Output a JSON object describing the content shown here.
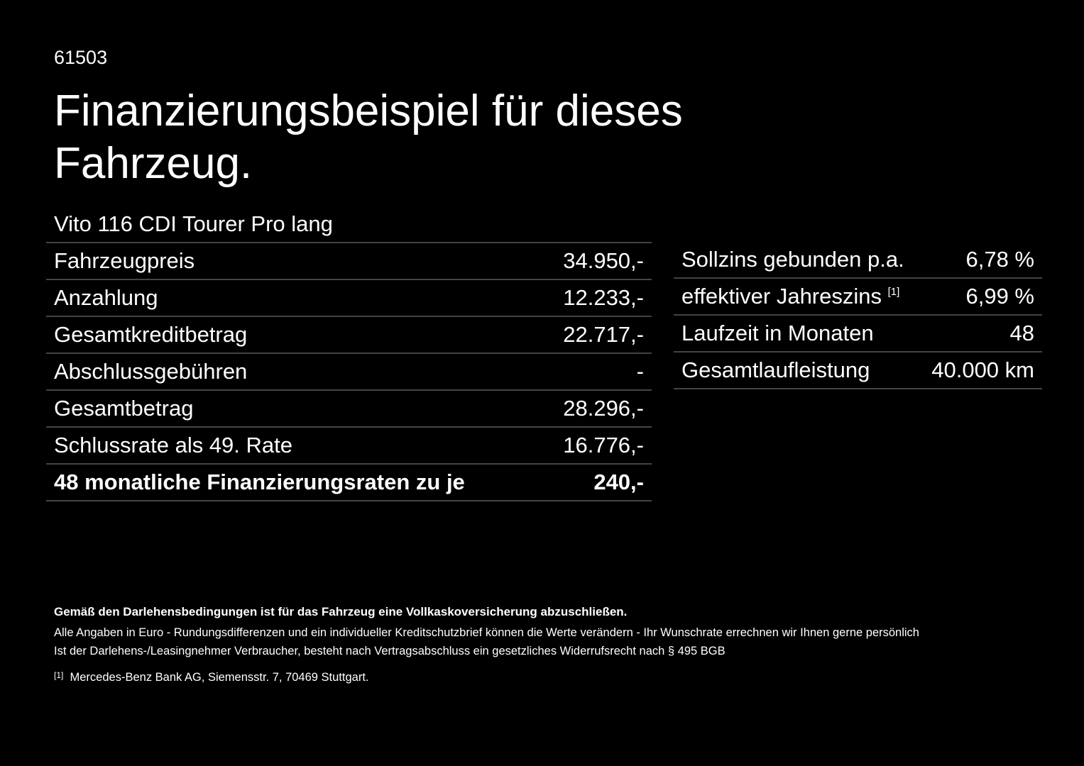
{
  "header": {
    "code": "61503",
    "title_line1": "Finanzierungsbeispiel für dieses",
    "title_line2": "Fahrzeug.",
    "model": "Vito 116 CDI Tourer Pro lang"
  },
  "left_table": {
    "rows": [
      [
        "Fahrzeugpreis",
        "34.950,-"
      ],
      [
        "Anzahlung",
        "12.233,-"
      ],
      [
        "Gesamtkreditbetrag",
        "22.717,-"
      ],
      [
        "Abschlussgebühren",
        "-"
      ],
      [
        "Gesamtbetrag",
        "28.296,-"
      ],
      [
        "Schlussrate als 49. Rate",
        "16.776,-"
      ],
      [
        "48 monatliche Finanzierungsraten zu je",
        "240,-"
      ]
    ]
  },
  "right_table": {
    "rows": [
      [
        "Sollzins gebunden p.a.",
        "6,78 %"
      ],
      [
        "effektiver Jahreszins",
        "6,99 %"
      ],
      [
        "Laufzeit in Monaten",
        "48"
      ],
      [
        "Gesamtlaufleistung",
        "40.000 km"
      ]
    ],
    "footnote_ref": "[1]"
  },
  "footer": {
    "bold_note": "Gemäß den Darlehensbedingungen ist für das Fahrzeug eine Vollkaskoversicherung abzuschließen.",
    "note1": "Alle Angaben in Euro - Rundungsdifferenzen und ein individueller Kreditschutzbrief können die Werte verändern - Ihr Wunschrate errechnen wir Ihnen gerne persönlich",
    "note2": "Ist der Darlehens-/Leasingnehmer Verbraucher, besteht nach Vertragsabschluss ein gesetzliches Widerrufsrecht nach § 495 BGB",
    "footnote_marker": "[1]",
    "footnote_text": "Mercedes-Benz Bank AG, Siemensstr. 7, 70469 Stuttgart."
  }
}
